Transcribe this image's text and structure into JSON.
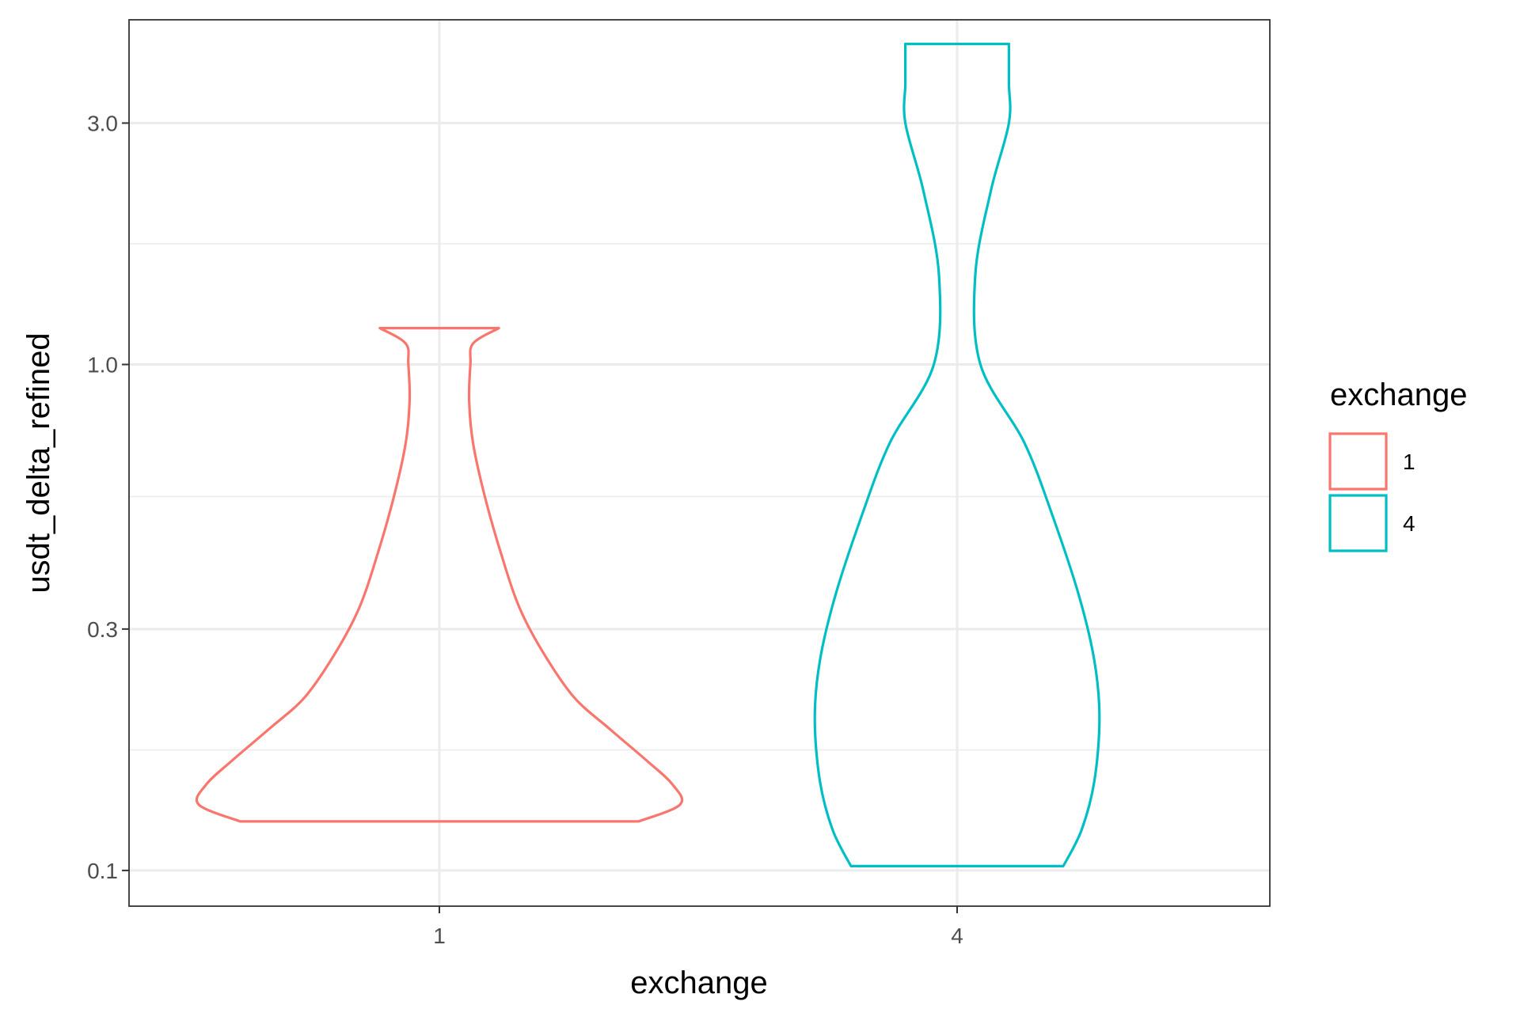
{
  "chart_data": {
    "type": "violin",
    "title": "",
    "xlabel": "exchange",
    "ylabel": "usdt_delta_refined",
    "y_scale": "log10",
    "ylim": [
      0.085,
      4.8
    ],
    "y_ticks": [
      {
        "value": 0.1,
        "label": "0.1"
      },
      {
        "value": 0.3,
        "label": "0.3"
      },
      {
        "value": 1.0,
        "label": "1.0"
      },
      {
        "value": 3.0,
        "label": "3.0"
      }
    ],
    "y_minor_ticks": [
      0.173,
      0.548,
      1.732
    ],
    "categories": [
      "1",
      "4"
    ],
    "legend": {
      "title": "exchange",
      "placement": "right"
    },
    "grid": true,
    "series": [
      {
        "name": "1",
        "category": "1",
        "color": "#F8766D",
        "min": 0.125,
        "max": 1.18,
        "profile": [
          [
            0.125,
            0.77
          ],
          [
            0.135,
            0.93
          ],
          [
            0.148,
            0.9
          ],
          [
            0.165,
            0.8
          ],
          [
            0.19,
            0.66
          ],
          [
            0.22,
            0.52
          ],
          [
            0.27,
            0.4
          ],
          [
            0.33,
            0.31
          ],
          [
            0.42,
            0.24
          ],
          [
            0.55,
            0.175
          ],
          [
            0.7,
            0.13
          ],
          [
            0.85,
            0.115
          ],
          [
            1.0,
            0.12
          ],
          [
            1.1,
            0.13
          ],
          [
            1.18,
            0.23
          ]
        ]
      },
      {
        "name": "4",
        "category": "4",
        "color": "#00BFC4",
        "min": 0.102,
        "max": 4.3,
        "profile": [
          [
            0.102,
            0.41
          ],
          [
            0.12,
            0.48
          ],
          [
            0.15,
            0.53
          ],
          [
            0.2,
            0.55
          ],
          [
            0.26,
            0.53
          ],
          [
            0.35,
            0.47
          ],
          [
            0.5,
            0.37
          ],
          [
            0.7,
            0.26
          ],
          [
            1.0,
            0.09
          ],
          [
            1.5,
            0.07
          ],
          [
            2.2,
            0.13
          ],
          [
            3.0,
            0.2
          ],
          [
            3.6,
            0.2
          ],
          [
            4.3,
            0.2
          ]
        ]
      }
    ]
  }
}
